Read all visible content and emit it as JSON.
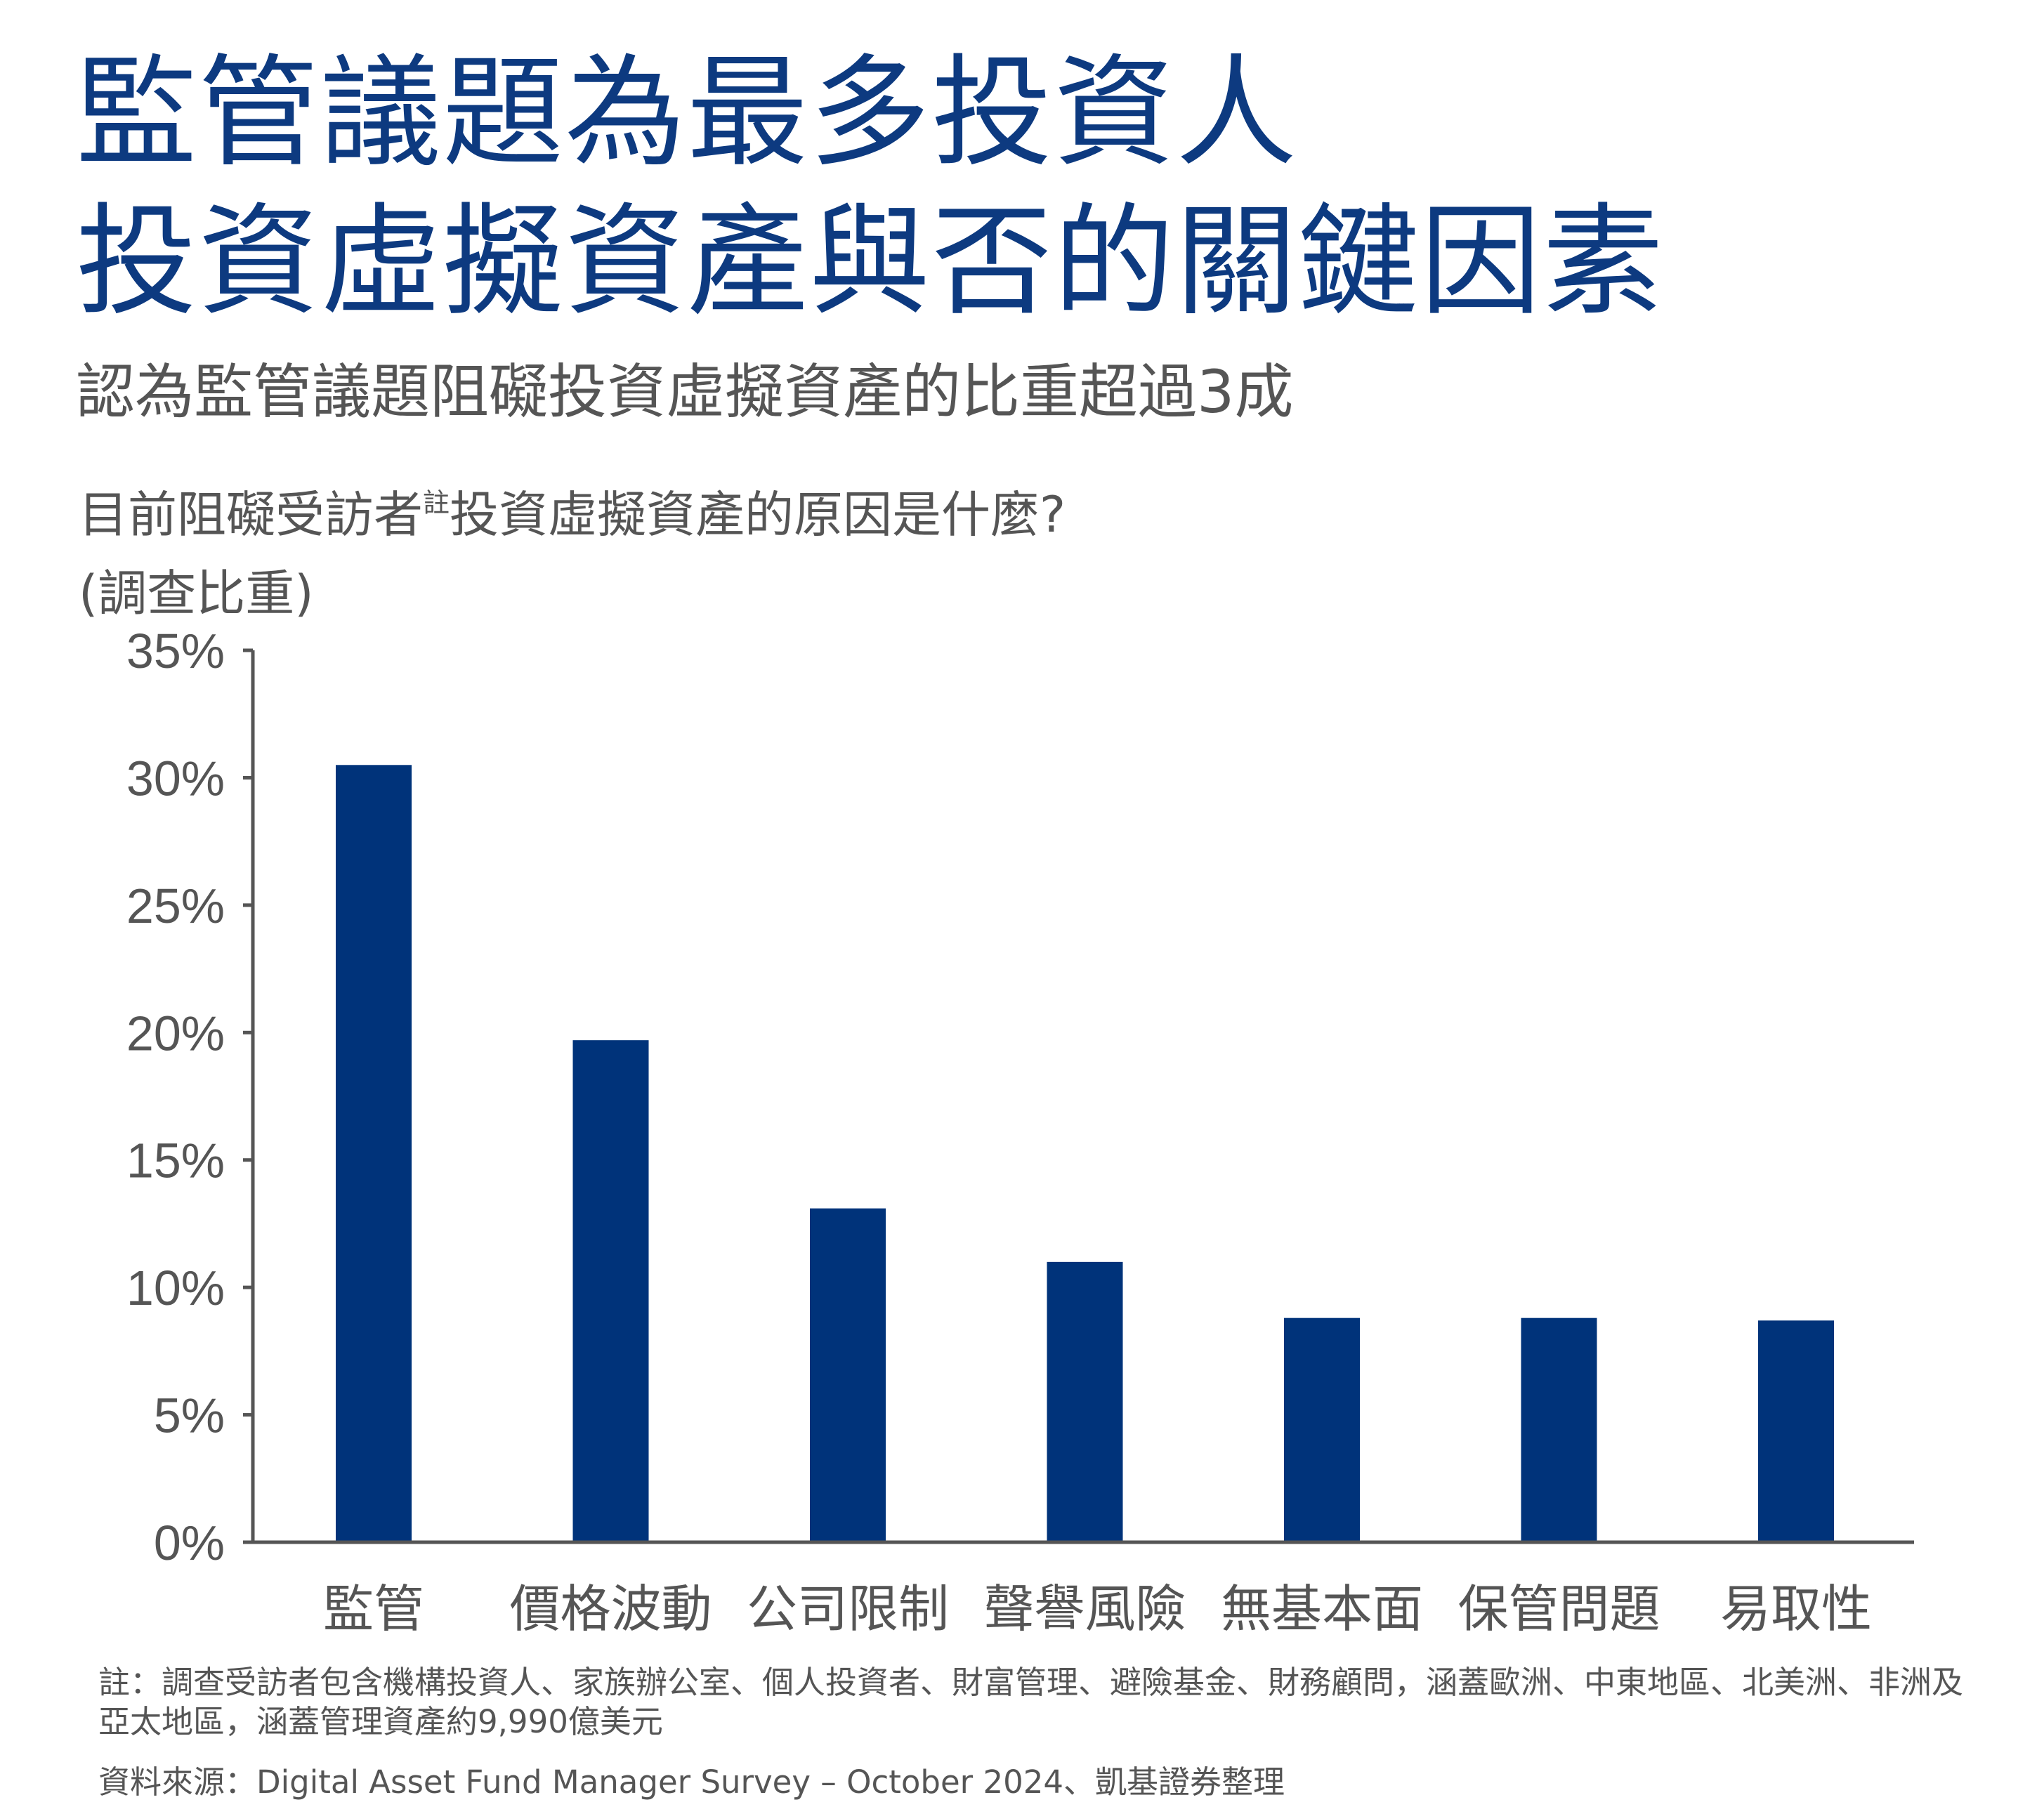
{
  "title_lines": [
    "監管議題為最多投資人",
    "投資虛擬資產與否的關鍵因素"
  ],
  "subtitle": "認為監管議題阻礙投資虛擬資產的比重超過3成",
  "question": {
    "prefix": "目前阻礙受訪者",
    "note_marker": "註",
    "suffix": "投資虛擬資產的原因是什麼?"
  },
  "unit_label": "(調查比重)",
  "colors": {
    "title": "#0d3a80",
    "bar": "#00337a",
    "axis": "#555555",
    "text": "#555555"
  },
  "chart_data": {
    "type": "bar",
    "categories": [
      "監管",
      "價格波動",
      "公司限制",
      "聲譽風險",
      "無基本面",
      "保管問題",
      "易取性"
    ],
    "values": [
      30.5,
      19.7,
      13.1,
      11.0,
      8.8,
      8.8,
      8.7
    ],
    "y_unit": "%",
    "ylim": [
      0,
      35
    ],
    "yticks": [
      0,
      5,
      10,
      15,
      20,
      25,
      30,
      35
    ],
    "ytick_labels": [
      "0%",
      "5%",
      "10%",
      "15%",
      "20%",
      "25%",
      "30%",
      "35%"
    ],
    "grid": false,
    "legend": "none"
  },
  "footnote": "註：調查受訪者包含機構投資人、家族辦公室、個人投資者、財富管理、避險基金、財務顧問，涵蓋歐洲、中東地區、北美洲、非洲及亞太地區，涵蓋管理資產約9,990億美元",
  "source": "資料來源：Digital Asset Fund Manager Survey – October 2024、凱基證券整理"
}
